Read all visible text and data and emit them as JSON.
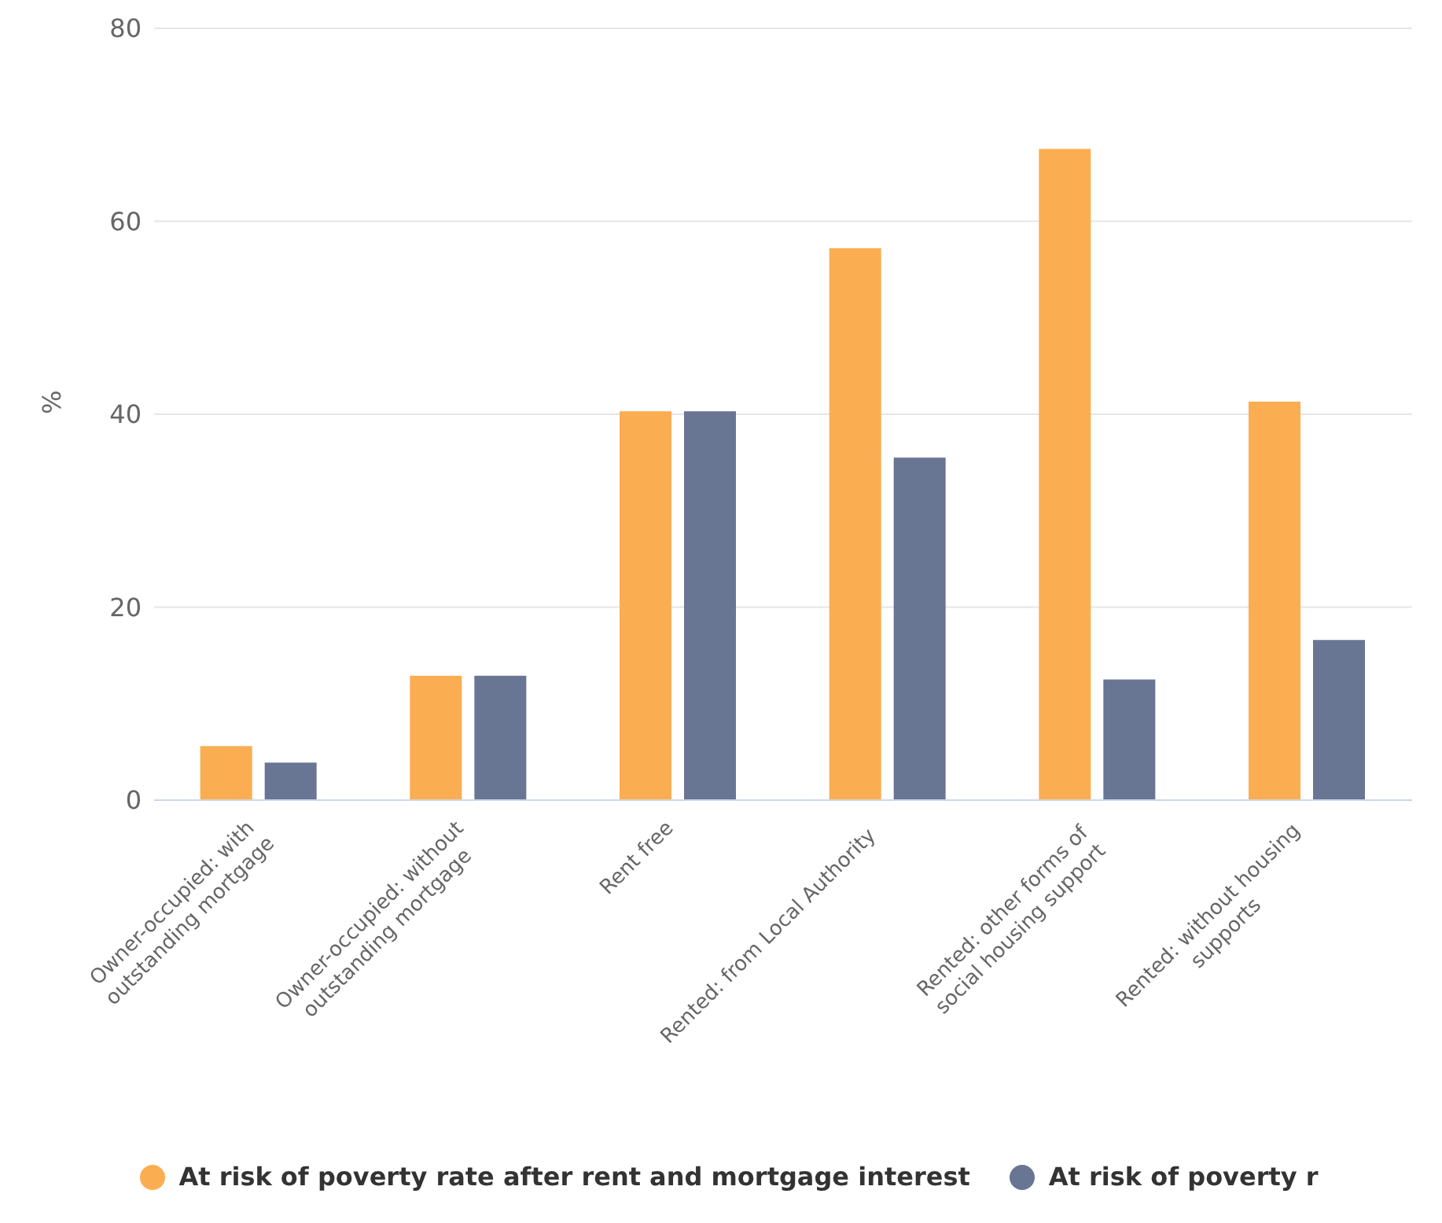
{
  "chart_data": {
    "type": "bar",
    "ylabel": "%",
    "categories": [
      "Owner-occupied: with outstanding mortgage",
      "Owner-occupied: without outstanding mortgage",
      "Rent free",
      "Rented: from Local Authority",
      "Rented: other forms of social housing support",
      "Rented: without housing supports"
    ],
    "series": [
      {
        "name": "At risk of poverty rate after rent and mortgage interest",
        "color": "#fbad52",
        "values": [
          5.6,
          12.9,
          40.3,
          57.2,
          67.5,
          41.3
        ]
      },
      {
        "name": "At risk of poverty r",
        "color": "#687593",
        "values": [
          3.9,
          12.9,
          40.3,
          35.5,
          12.5,
          16.6
        ]
      }
    ],
    "ylim": [
      0,
      80
    ],
    "yticks": [
      0,
      20,
      40,
      60,
      80
    ],
    "grid": "y",
    "legend": "bottom"
  }
}
